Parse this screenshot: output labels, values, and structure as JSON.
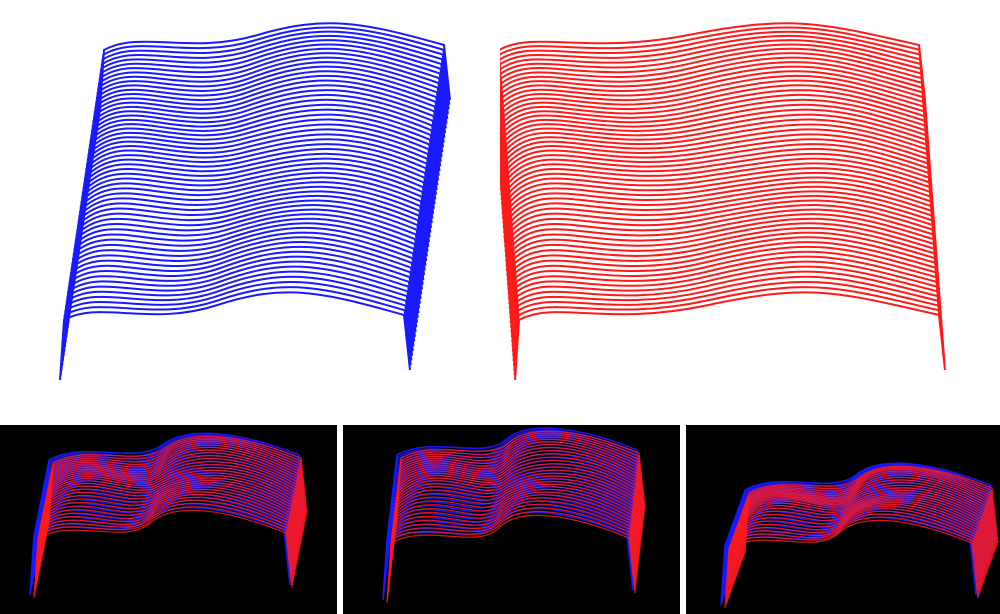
{
  "figure": {
    "panels": [
      {
        "id": "top-left",
        "description_color": "blue",
        "background": "#ffffff"
      },
      {
        "id": "top-right",
        "description_color": "red",
        "background": "#ffffff"
      },
      {
        "id": "bottom-1",
        "background": "#000000"
      },
      {
        "id": "bottom-2",
        "background": "#000000"
      },
      {
        "id": "bottom-3",
        "background": "#000000"
      }
    ],
    "colors": {
      "blue": "#1a1aff",
      "red": "#ff1a1a",
      "magenta": "#a020c0",
      "white_bg": "#ffffff",
      "black_bg": "#000000"
    }
  }
}
